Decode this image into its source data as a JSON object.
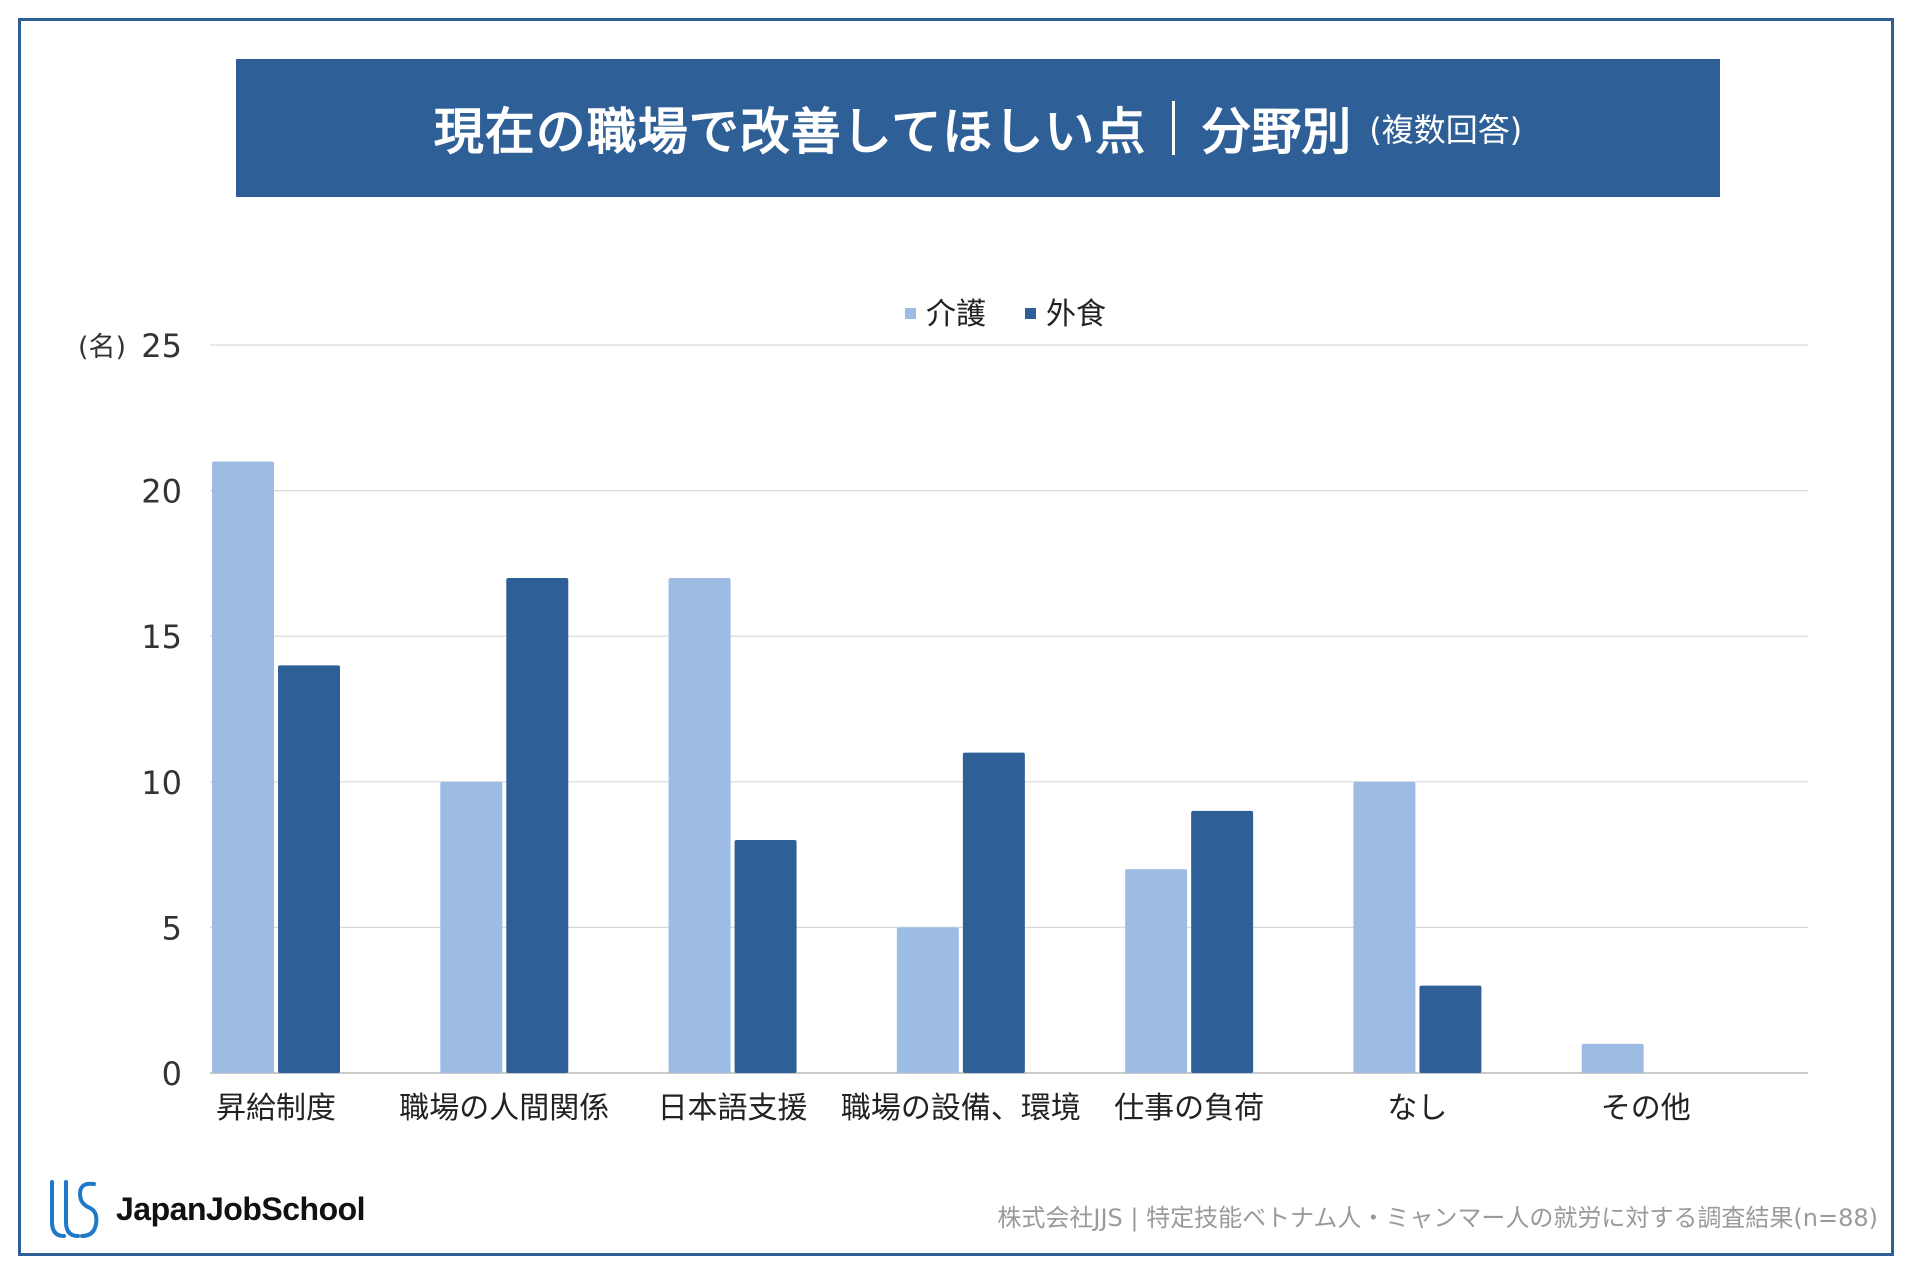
{
  "title": {
    "main": "現在の職場で改善してほしい点",
    "sub": "分野別",
    "note": "(複数回答)"
  },
  "chart_data": {
    "type": "bar",
    "categories": [
      "昇給制度",
      "職場の人間関係",
      "日本語支援",
      "職場の設備、環境",
      "仕事の負荷",
      "なし",
      "その他"
    ],
    "series": [
      {
        "name": "介護",
        "values": [
          21,
          10,
          17,
          5,
          7,
          10,
          1
        ],
        "color": "#9dbce3"
      },
      {
        "name": "外食",
        "values": [
          14,
          17,
          8,
          11,
          9,
          3,
          0
        ],
        "color": "#2e5f96"
      }
    ],
    "y_unit_label": "(名)",
    "yticks": [
      0,
      5,
      10,
      15,
      20,
      25
    ],
    "ylim": [
      0,
      25
    ],
    "grid": true,
    "legend_position": "top-center"
  },
  "logo": {
    "text": "JapanJobSchool"
  },
  "source": "株式会社JJS | 特定技能ベトナム人・ミャンマー人の就労に対する調査結果(n=88)"
}
